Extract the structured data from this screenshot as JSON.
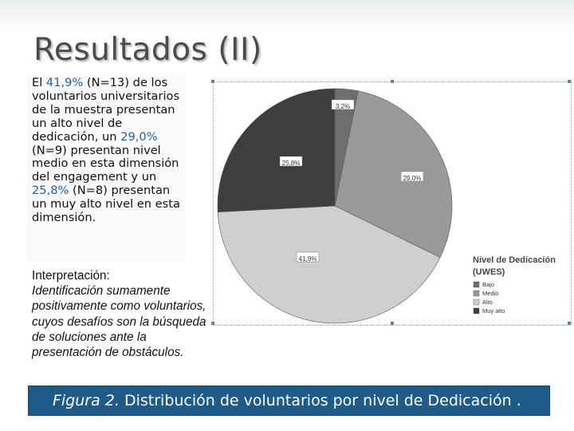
{
  "slide": {
    "title": "Resultados (II)",
    "summary": {
      "p1": "El ",
      "v1": "41,9%",
      "p2": " (N=13) de los voluntarios universitarios de la muestra presentan un alto nivel de dedicación, un ",
      "v2": "29,0%",
      "p3": " (N=9) presentan nivel medio en esta dimensión del engagement y un ",
      "v3": "25,8%",
      "p4": " (N=8) presentan un muy alto nivel en esta dimensión."
    },
    "interpretation": {
      "heading": "Interpretación:",
      "body": "Identificación sumamente positivamente como voluntarios, cuyos desafíos son  la búsqueda de soluciones ante la presentación de obstáculos."
    },
    "caption": {
      "figure": "Figura 2.",
      "text": " Distribución de voluntarios por nivel de Dedicación ."
    }
  },
  "chart_data": {
    "type": "pie",
    "legend_title": "Nivel de Dedicación (UWES)",
    "legend_position": "right",
    "slices": [
      {
        "label": "Bajo",
        "value": 3.2,
        "display": "3,2%",
        "color": "#6e6e6e"
      },
      {
        "label": "Medio",
        "value": 29.0,
        "display": "29,0%",
        "color": "#9a9a9a"
      },
      {
        "label": "Alto",
        "value": 41.9,
        "display": "41,9%",
        "color": "#cfcfcf"
      },
      {
        "label": "Muy alto",
        "value": 25.8,
        "display": "25,8%",
        "color": "#3e3e3e"
      }
    ]
  }
}
